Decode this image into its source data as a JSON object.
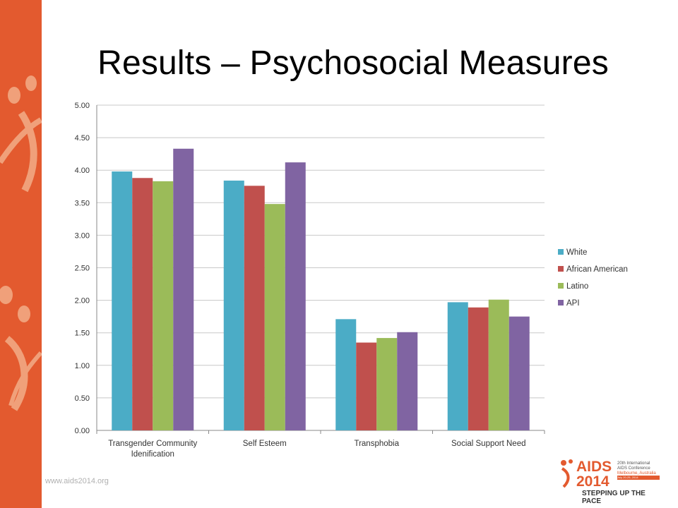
{
  "slide": {
    "title": "Results – Psychosocial Measures",
    "footer_url": "www.aids2014.org"
  },
  "logo": {
    "name_line1": "AIDS",
    "name_line2": "2014",
    "conference_line1": "20th International",
    "conference_line2": "AIDS Conference",
    "location": "Melbourne, Australia",
    "dates": "July 20-25, 2014",
    "tagline": "STEPPING UP THE PACE",
    "accent_color": "#e35a2f"
  },
  "chart_data": {
    "type": "bar",
    "categories": [
      "Transgender Community\nIdenification",
      "Self Esteem",
      "Transphobia",
      "Social Support Need"
    ],
    "series": [
      {
        "name": "White",
        "color": "#4bacc6",
        "values": [
          3.98,
          3.84,
          1.71,
          1.97
        ]
      },
      {
        "name": "African American",
        "color": "#c0504d",
        "values": [
          3.88,
          3.76,
          1.35,
          1.89
        ]
      },
      {
        "name": "Latino",
        "color": "#9bbb59",
        "values": [
          3.83,
          3.48,
          1.42,
          2.01
        ]
      },
      {
        "name": "API",
        "color": "#8064a2",
        "values": [
          4.33,
          4.12,
          1.51,
          1.75
        ]
      }
    ],
    "ylim": [
      0,
      5
    ],
    "yticks": [
      "0.00",
      "0.50",
      "1.00",
      "1.50",
      "2.00",
      "2.50",
      "3.00",
      "3.50",
      "4.00",
      "4.50",
      "5.00"
    ],
    "grid": true,
    "legend": "right"
  }
}
